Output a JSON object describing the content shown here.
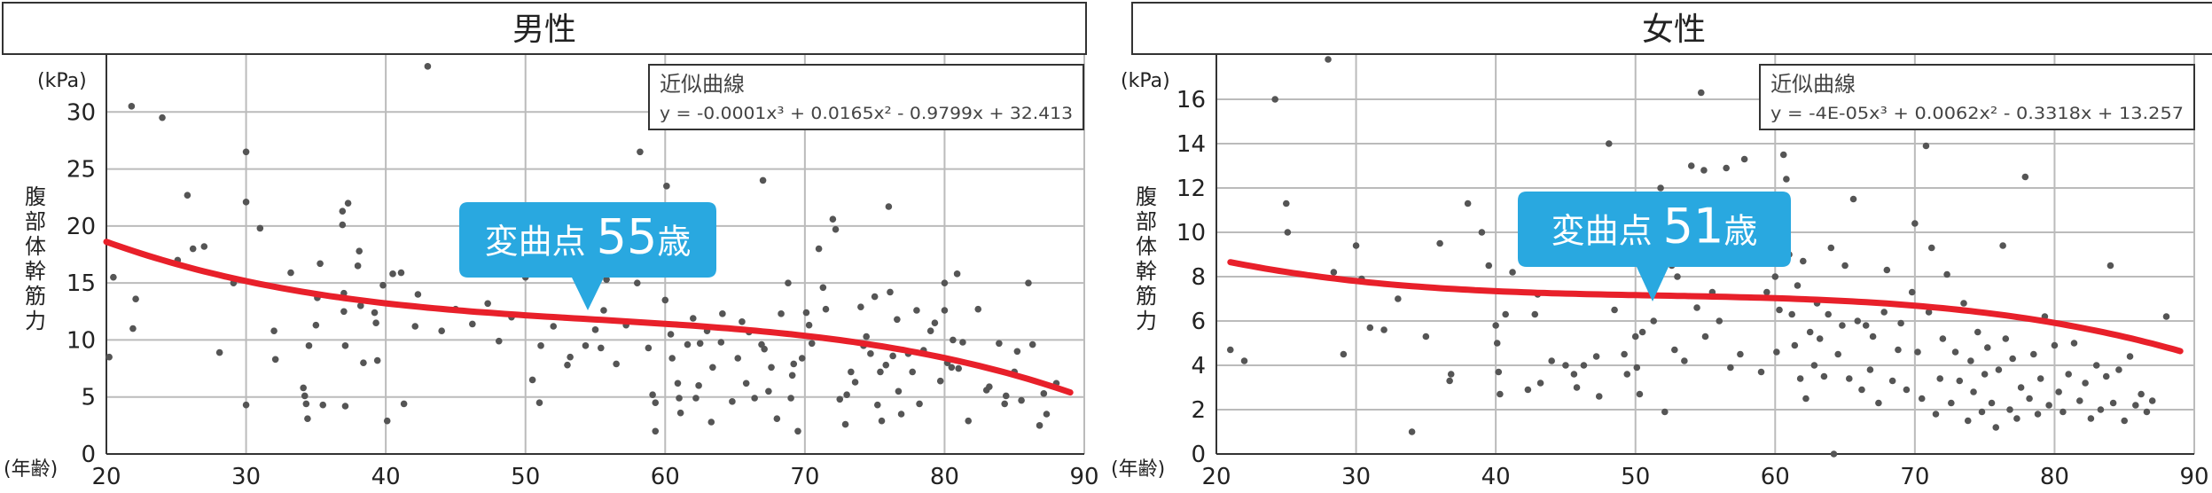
{
  "chart_data": [
    {
      "type": "scatter",
      "title": "男性",
      "xlabel": "(年齢)",
      "ylabel": "腹部体幹筋力",
      "yunit": "(kPa)",
      "xlim": [
        20,
        90
      ],
      "ylim": [
        0,
        35
      ],
      "xticks": [
        20,
        30,
        40,
        50,
        60,
        70,
        80,
        90
      ],
      "yticks": [
        0,
        5,
        10,
        15,
        20,
        25,
        30
      ],
      "grid": true,
      "trend": {
        "label": "近似曲線",
        "equation": "y = -0.0001x³ + 0.0165x² - 0.9799x + 32.413",
        "coef": [
          -0.0001,
          0.0165,
          -0.9799,
          32.413
        ],
        "range": [
          20,
          89
        ]
      },
      "callout": {
        "text": "変曲点",
        "value": "55歳",
        "x": 55
      },
      "colors": {
        "points": "#555555",
        "trend": "#e8202a",
        "callout": "#29a8e0"
      },
      "points": [
        [
          20.2,
          8.5
        ],
        [
          20.5,
          15.5
        ],
        [
          21.8,
          30.5
        ],
        [
          21.9,
          11.0
        ],
        [
          22.1,
          13.6
        ],
        [
          24.0,
          29.5
        ],
        [
          25.1,
          17.0
        ],
        [
          25.8,
          22.7
        ],
        [
          26.2,
          18.0
        ],
        [
          27.0,
          18.2
        ],
        [
          28.1,
          8.9
        ],
        [
          29.1,
          15.0
        ],
        [
          30.0,
          4.3
        ],
        [
          30.0,
          22.1
        ],
        [
          30.0,
          26.5
        ],
        [
          31.0,
          19.8
        ],
        [
          32.0,
          10.8
        ],
        [
          32.1,
          8.3
        ],
        [
          33.2,
          15.9
        ],
        [
          34.1,
          5.8
        ],
        [
          34.2,
          5.1
        ],
        [
          34.3,
          4.4
        ],
        [
          34.4,
          3.1
        ],
        [
          34.5,
          9.5
        ],
        [
          35.0,
          11.3
        ],
        [
          35.1,
          13.7
        ],
        [
          35.3,
          16.7
        ],
        [
          35.5,
          4.3
        ],
        [
          36.9,
          20.1
        ],
        [
          36.9,
          21.3
        ],
        [
          37.0,
          14.1
        ],
        [
          37.0,
          12.5
        ],
        [
          37.1,
          9.5
        ],
        [
          37.1,
          4.2
        ],
        [
          37.3,
          22.0
        ],
        [
          38.0,
          16.5
        ],
        [
          38.1,
          17.8
        ],
        [
          38.2,
          13.0
        ],
        [
          38.4,
          8.0
        ],
        [
          39.2,
          12.4
        ],
        [
          39.3,
          11.5
        ],
        [
          39.4,
          8.2
        ],
        [
          39.8,
          14.8
        ],
        [
          40.1,
          2.9
        ],
        [
          40.5,
          15.8
        ],
        [
          41.1,
          15.9
        ],
        [
          41.3,
          4.4
        ],
        [
          42.1,
          11.2
        ],
        [
          42.3,
          14.0
        ],
        [
          43.0,
          34.0
        ],
        [
          44.0,
          10.8
        ],
        [
          45.0,
          12.7
        ],
        [
          46.2,
          11.4
        ],
        [
          47.3,
          13.2
        ],
        [
          48.1,
          9.9
        ],
        [
          49.0,
          12.0
        ],
        [
          50.0,
          15.5
        ],
        [
          50.5,
          6.5
        ],
        [
          51.0,
          4.5
        ],
        [
          51.1,
          9.5
        ],
        [
          52.0,
          11.2
        ],
        [
          53.0,
          7.8
        ],
        [
          53.2,
          8.5
        ],
        [
          54.3,
          9.5
        ],
        [
          55.0,
          10.9
        ],
        [
          55.4,
          9.3
        ],
        [
          55.6,
          12.6
        ],
        [
          55.8,
          15.3
        ],
        [
          56.5,
          7.9
        ],
        [
          57.2,
          11.3
        ],
        [
          57.5,
          16.5
        ],
        [
          58.0,
          15.0
        ],
        [
          58.2,
          26.5
        ],
        [
          58.8,
          9.3
        ],
        [
          59.1,
          5.2
        ],
        [
          59.3,
          2.0
        ],
        [
          59.3,
          4.5
        ],
        [
          60.0,
          13.5
        ],
        [
          60.1,
          23.5
        ],
        [
          60.2,
          20.5
        ],
        [
          60.4,
          10.5
        ],
        [
          60.5,
          8.4
        ],
        [
          60.9,
          6.2
        ],
        [
          61.0,
          4.9
        ],
        [
          61.1,
          3.6
        ],
        [
          61.6,
          9.6
        ],
        [
          62.0,
          11.9
        ],
        [
          62.2,
          4.9
        ],
        [
          62.4,
          6.0
        ],
        [
          62.5,
          9.7
        ],
        [
          63.0,
          10.8
        ],
        [
          63.3,
          2.8
        ],
        [
          63.4,
          7.6
        ],
        [
          64.0,
          9.8
        ],
        [
          64.1,
          12.3
        ],
        [
          64.8,
          4.6
        ],
        [
          65.2,
          8.4
        ],
        [
          65.5,
          11.6
        ],
        [
          65.8,
          6.2
        ],
        [
          66.0,
          10.7
        ],
        [
          66.4,
          4.9
        ],
        [
          66.9,
          9.6
        ],
        [
          67.0,
          24.0
        ],
        [
          67.1,
          9.2
        ],
        [
          67.4,
          5.5
        ],
        [
          67.6,
          7.6
        ],
        [
          68.0,
          3.1
        ],
        [
          68.3,
          12.3
        ],
        [
          68.8,
          15.0
        ],
        [
          69.0,
          4.9
        ],
        [
          69.1,
          6.9
        ],
        [
          69.2,
          7.9
        ],
        [
          69.5,
          2.0
        ],
        [
          69.8,
          8.4
        ],
        [
          70.1,
          12.4
        ],
        [
          70.3,
          11.3
        ],
        [
          70.5,
          9.7
        ],
        [
          71.0,
          18.0
        ],
        [
          71.3,
          14.6
        ],
        [
          71.5,
          12.7
        ],
        [
          72.0,
          20.6
        ],
        [
          72.2,
          19.7
        ],
        [
          72.5,
          4.8
        ],
        [
          72.9,
          2.6
        ],
        [
          73.0,
          5.2
        ],
        [
          73.3,
          7.2
        ],
        [
          73.6,
          6.3
        ],
        [
          74.0,
          12.9
        ],
        [
          74.2,
          9.5
        ],
        [
          74.4,
          10.3
        ],
        [
          74.7,
          8.8
        ],
        [
          75.0,
          13.8
        ],
        [
          75.2,
          4.3
        ],
        [
          75.4,
          7.2
        ],
        [
          75.5,
          2.9
        ],
        [
          75.8,
          7.8
        ],
        [
          76.0,
          21.7
        ],
        [
          76.1,
          14.2
        ],
        [
          76.3,
          8.6
        ],
        [
          76.6,
          11.8
        ],
        [
          76.7,
          5.5
        ],
        [
          76.9,
          3.5
        ],
        [
          77.4,
          8.8
        ],
        [
          77.7,
          7.2
        ],
        [
          78.0,
          12.6
        ],
        [
          78.2,
          4.4
        ],
        [
          78.5,
          9.1
        ],
        [
          79.0,
          10.8
        ],
        [
          79.3,
          11.5
        ],
        [
          79.7,
          6.4
        ],
        [
          80.0,
          15.0
        ],
        [
          80.0,
          12.6
        ],
        [
          80.2,
          8.0
        ],
        [
          80.5,
          7.6
        ],
        [
          80.6,
          10.0
        ],
        [
          80.9,
          15.8
        ],
        [
          81.0,
          7.5
        ],
        [
          81.3,
          9.8
        ],
        [
          81.7,
          2.9
        ],
        [
          82.4,
          12.7
        ],
        [
          83.0,
          5.6
        ],
        [
          83.2,
          5.9
        ],
        [
          83.9,
          9.7
        ],
        [
          84.3,
          4.4
        ],
        [
          84.4,
          5.1
        ],
        [
          85.0,
          7.2
        ],
        [
          85.2,
          9.0
        ],
        [
          85.5,
          4.7
        ],
        [
          86.0,
          15.0
        ],
        [
          86.3,
          9.6
        ],
        [
          86.8,
          2.5
        ],
        [
          87.1,
          5.3
        ],
        [
          87.3,
          3.5
        ],
        [
          88.0,
          6.2
        ]
      ]
    },
    {
      "type": "scatter",
      "title": "女性",
      "xlabel": "(年齢)",
      "ylabel": "腹部体幹筋力",
      "yunit": "(kPa)",
      "xlim": [
        20,
        90
      ],
      "ylim": [
        0,
        18
      ],
      "xticks": [
        20,
        30,
        40,
        50,
        60,
        70,
        80,
        90
      ],
      "yticks": [
        0,
        2,
        4,
        6,
        8,
        10,
        12,
        14,
        16
      ],
      "grid": true,
      "trend": {
        "label": "近似曲線",
        "equation": "y = -4E-05x³ + 0.0062x² - 0.3318x + 13.257",
        "coef": [
          -4e-05,
          0.0062,
          -0.3318,
          13.257
        ],
        "range": [
          21,
          89
        ]
      },
      "callout": {
        "text": "変曲点",
        "value": "51歳",
        "x": 51
      },
      "colors": {
        "points": "#555555",
        "trend": "#e8202a",
        "callout": "#29a8e0"
      },
      "points": [
        [
          21.0,
          4.7
        ],
        [
          22.0,
          4.2
        ],
        [
          24.2,
          16.0
        ],
        [
          25.0,
          11.3
        ],
        [
          25.1,
          10.0
        ],
        [
          28.0,
          17.8
        ],
        [
          28.4,
          8.2
        ],
        [
          29.1,
          4.5
        ],
        [
          30.0,
          9.4
        ],
        [
          30.4,
          7.9
        ],
        [
          31.0,
          5.7
        ],
        [
          32.0,
          5.6
        ],
        [
          33.0,
          7.0
        ],
        [
          34.0,
          1.0
        ],
        [
          35.0,
          5.3
        ],
        [
          36.0,
          9.5
        ],
        [
          36.7,
          3.3
        ],
        [
          36.8,
          3.6
        ],
        [
          38.0,
          11.3
        ],
        [
          39.0,
          10.0
        ],
        [
          39.5,
          8.5
        ],
        [
          40.0,
          5.8
        ],
        [
          40.1,
          5.0
        ],
        [
          40.2,
          3.7
        ],
        [
          40.3,
          2.7
        ],
        [
          40.7,
          6.3
        ],
        [
          41.2,
          8.2
        ],
        [
          42.3,
          2.9
        ],
        [
          42.8,
          6.3
        ],
        [
          43.0,
          7.2
        ],
        [
          43.2,
          3.2
        ],
        [
          44.0,
          4.2
        ],
        [
          45.0,
          4.0
        ],
        [
          45.6,
          3.6
        ],
        [
          45.8,
          3.0
        ],
        [
          46.3,
          4.0
        ],
        [
          47.2,
          4.4
        ],
        [
          47.4,
          2.6
        ],
        [
          48.1,
          14.0
        ],
        [
          48.5,
          6.5
        ],
        [
          49.2,
          4.5
        ],
        [
          49.4,
          3.6
        ],
        [
          50.0,
          5.3
        ],
        [
          50.1,
          3.9
        ],
        [
          50.3,
          2.7
        ],
        [
          50.5,
          5.5
        ],
        [
          51.0,
          9.5
        ],
        [
          51.3,
          6.0
        ],
        [
          51.8,
          12.0
        ],
        [
          52.1,
          1.9
        ],
        [
          52.6,
          8.5
        ],
        [
          52.8,
          4.7
        ],
        [
          53.0,
          8.0
        ],
        [
          53.5,
          4.2
        ],
        [
          54.0,
          13.0
        ],
        [
          54.4,
          6.6
        ],
        [
          54.7,
          16.3
        ],
        [
          54.9,
          12.8
        ],
        [
          55.0,
          5.3
        ],
        [
          55.5,
          7.3
        ],
        [
          56.0,
          6.0
        ],
        [
          56.5,
          12.9
        ],
        [
          56.8,
          3.9
        ],
        [
          57.5,
          4.5
        ],
        [
          57.8,
          13.3
        ],
        [
          58.0,
          11.2
        ],
        [
          58.2,
          10.0
        ],
        [
          58.9,
          8.6
        ],
        [
          59.0,
          3.7
        ],
        [
          59.4,
          7.3
        ],
        [
          60.0,
          8.0
        ],
        [
          60.1,
          4.6
        ],
        [
          60.3,
          6.5
        ],
        [
          60.6,
          13.5
        ],
        [
          60.8,
          12.4
        ],
        [
          61.0,
          9.0
        ],
        [
          61.2,
          6.3
        ],
        [
          61.4,
          4.9
        ],
        [
          61.6,
          7.6
        ],
        [
          61.8,
          3.4
        ],
        [
          62.0,
          8.7
        ],
        [
          62.2,
          2.5
        ],
        [
          62.5,
          5.5
        ],
        [
          62.8,
          4.0
        ],
        [
          63.0,
          6.8
        ],
        [
          63.2,
          5.2
        ],
        [
          63.5,
          3.5
        ],
        [
          63.8,
          6.3
        ],
        [
          64.0,
          9.3
        ],
        [
          64.2,
          0.0
        ],
        [
          64.5,
          4.5
        ],
        [
          64.8,
          5.8
        ],
        [
          65.0,
          8.5
        ],
        [
          65.3,
          3.4
        ],
        [
          65.6,
          11.5
        ],
        [
          65.9,
          6.0
        ],
        [
          66.2,
          2.9
        ],
        [
          66.5,
          5.8
        ],
        [
          66.8,
          3.8
        ],
        [
          67.0,
          5.3
        ],
        [
          67.4,
          2.3
        ],
        [
          67.8,
          6.4
        ],
        [
          68.0,
          8.3
        ],
        [
          68.4,
          3.3
        ],
        [
          68.8,
          4.7
        ],
        [
          69.0,
          5.9
        ],
        [
          69.4,
          2.9
        ],
        [
          69.8,
          7.3
        ],
        [
          70.0,
          10.4
        ],
        [
          70.2,
          4.6
        ],
        [
          70.5,
          2.5
        ],
        [
          70.8,
          13.9
        ],
        [
          71.0,
          6.4
        ],
        [
          71.2,
          9.3
        ],
        [
          71.5,
          1.8
        ],
        [
          71.8,
          3.4
        ],
        [
          72.0,
          5.2
        ],
        [
          72.3,
          8.1
        ],
        [
          72.6,
          2.3
        ],
        [
          72.9,
          4.6
        ],
        [
          73.2,
          3.3
        ],
        [
          73.5,
          6.8
        ],
        [
          73.8,
          1.5
        ],
        [
          74.0,
          4.2
        ],
        [
          74.2,
          2.8
        ],
        [
          74.5,
          5.5
        ],
        [
          74.8,
          1.9
        ],
        [
          75.0,
          3.6
        ],
        [
          75.2,
          4.8
        ],
        [
          75.5,
          2.3
        ],
        [
          75.8,
          1.2
        ],
        [
          76.0,
          3.8
        ],
        [
          76.3,
          9.4
        ],
        [
          76.5,
          5.2
        ],
        [
          76.8,
          2.0
        ],
        [
          77.0,
          4.3
        ],
        [
          77.3,
          1.6
        ],
        [
          77.6,
          3.0
        ],
        [
          77.9,
          12.5
        ],
        [
          78.2,
          2.5
        ],
        [
          78.5,
          4.5
        ],
        [
          78.8,
          1.8
        ],
        [
          79.0,
          3.4
        ],
        [
          79.3,
          6.2
        ],
        [
          79.6,
          2.2
        ],
        [
          80.0,
          4.9
        ],
        [
          80.3,
          2.8
        ],
        [
          80.6,
          1.9
        ],
        [
          81.0,
          3.6
        ],
        [
          81.4,
          5.0
        ],
        [
          81.8,
          2.4
        ],
        [
          82.2,
          3.2
        ],
        [
          82.6,
          1.6
        ],
        [
          83.0,
          4.0
        ],
        [
          83.3,
          2.0
        ],
        [
          83.7,
          3.5
        ],
        [
          84.0,
          8.5
        ],
        [
          84.2,
          2.3
        ],
        [
          84.6,
          3.8
        ],
        [
          85.0,
          1.5
        ],
        [
          85.4,
          4.4
        ],
        [
          85.8,
          2.2
        ],
        [
          86.2,
          2.7
        ],
        [
          86.6,
          1.9
        ],
        [
          87.0,
          2.4
        ],
        [
          88.0,
          6.2
        ]
      ]
    }
  ]
}
